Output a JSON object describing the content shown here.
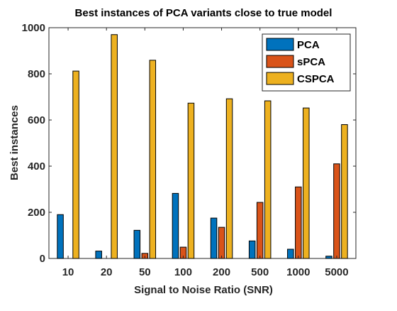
{
  "chart_data": {
    "type": "bar",
    "title": "Best instances of PCA variants close to true model",
    "xlabel": "Signal to Noise Ratio (SNR)",
    "ylabel": "Best instances",
    "categories": [
      "10",
      "20",
      "50",
      "100",
      "200",
      "500",
      "1000",
      "5000"
    ],
    "ylim": [
      0,
      1000
    ],
    "yticks": [
      "0",
      "200",
      "400",
      "600",
      "800",
      "1000"
    ],
    "grid": false,
    "legend_position": "top-right",
    "series": [
      {
        "name": "PCA",
        "color": "#0072BD",
        "values": [
          190,
          32,
          122,
          282,
          175,
          76,
          40,
          10
        ]
      },
      {
        "name": "sPCA",
        "color": "#D95319",
        "values": [
          0,
          0,
          22,
          49,
          135,
          243,
          310,
          410
        ]
      },
      {
        "name": "CSPCA",
        "color": "#EDB120",
        "values": [
          812,
          970,
          859,
          673,
          692,
          683,
          652,
          580
        ]
      }
    ]
  }
}
